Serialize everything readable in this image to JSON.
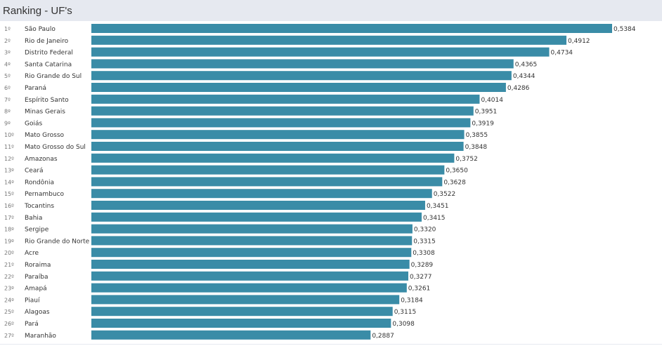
{
  "header": {
    "title": "Ranking - UF's"
  },
  "colors": {
    "bar": "#3a8ca7",
    "header_bg": "#e6e9f0",
    "text": "#333333",
    "rank_text": "#777777"
  },
  "chart_data": {
    "type": "bar",
    "orientation": "horizontal",
    "title": "Ranking - UF's",
    "categories": [
      "São Paulo",
      "Rio de Janeiro",
      "Distrito Federal",
      "Santa Catarina",
      "Rio Grande do Sul",
      "Paraná",
      "Espírito Santo",
      "Minas Gerais",
      "Goiás",
      "Mato Grosso",
      "Mato Grosso do Sul",
      "Amazonas",
      "Ceará",
      "Rondônia",
      "Pernambuco",
      "Tocantins",
      "Bahia",
      "Sergipe",
      "Rio Grande do Norte",
      "Acre",
      "Roraima",
      "Paraíba",
      "Amapá",
      "Piauí",
      "Alagoas",
      "Pará",
      "Maranhão"
    ],
    "ranks": [
      "1º",
      "2º",
      "3º",
      "4º",
      "5º",
      "6º",
      "7º",
      "8º",
      "9º",
      "10º",
      "11º",
      "12º",
      "13º",
      "14º",
      "15º",
      "16º",
      "17º",
      "18º",
      "19º",
      "20º",
      "21º",
      "22º",
      "23º",
      "24º",
      "25º",
      "26º",
      "27º"
    ],
    "values": [
      0.5384,
      0.4912,
      0.4734,
      0.4365,
      0.4344,
      0.4286,
      0.4014,
      0.3951,
      0.3919,
      0.3855,
      0.3848,
      0.3752,
      0.365,
      0.3628,
      0.3522,
      0.3451,
      0.3415,
      0.332,
      0.3315,
      0.3308,
      0.3289,
      0.3277,
      0.3261,
      0.3184,
      0.3115,
      0.3098,
      0.2887
    ],
    "value_labels": [
      "0,5384",
      "0,4912",
      "0,4734",
      "0,4365",
      "0,4344",
      "0,4286",
      "0,4014",
      "0,3951",
      "0,3919",
      "0,3855",
      "0,3848",
      "0,3752",
      "0,3650",
      "0,3628",
      "0,3522",
      "0,3451",
      "0,3415",
      "0,3320",
      "0,3315",
      "0,3308",
      "0,3289",
      "0,3277",
      "0,3261",
      "0,3184",
      "0,3115",
      "0,3098",
      "0,2887"
    ],
    "xlim": [
      0,
      0.5384
    ],
    "grid": false
  }
}
